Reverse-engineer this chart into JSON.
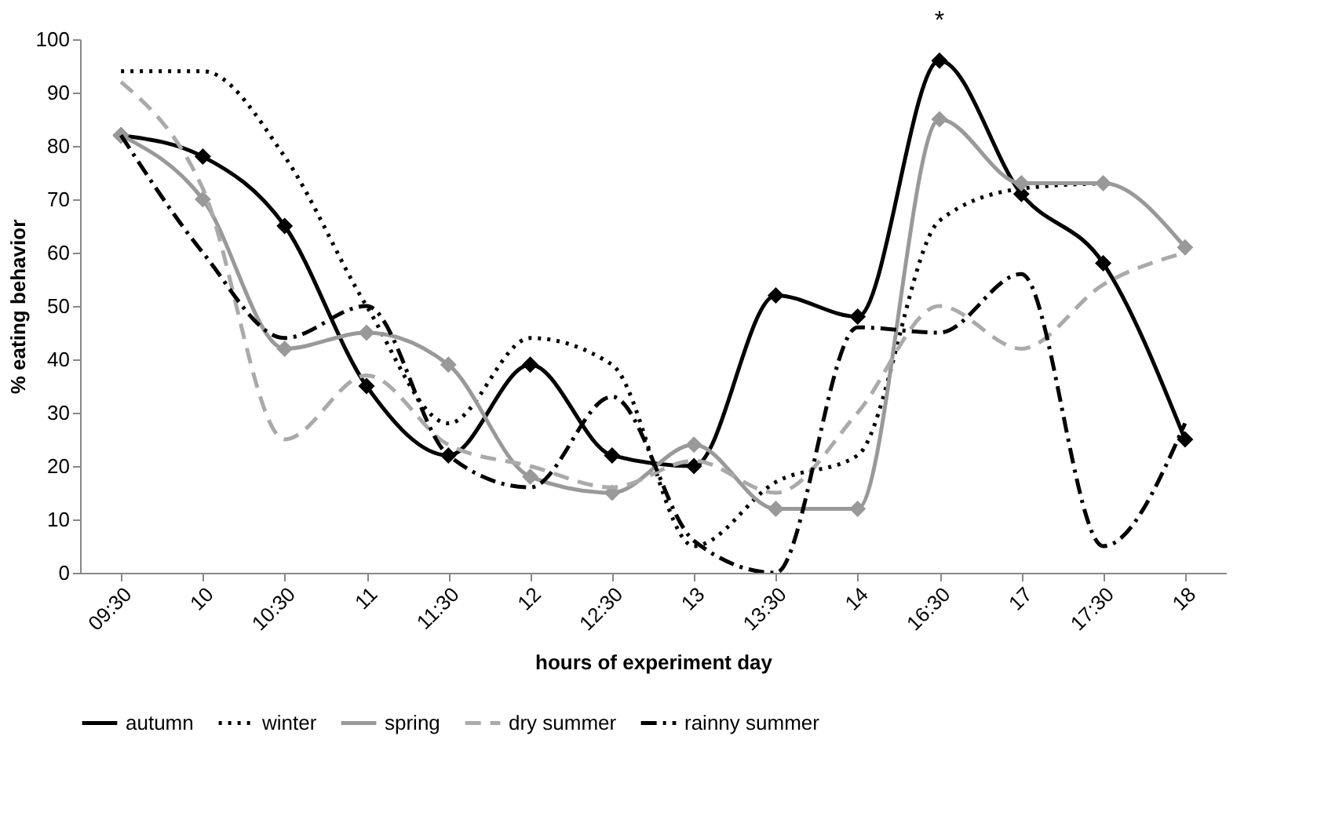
{
  "chart_data": {
    "type": "line",
    "xlabel": "hours of experiment day",
    "ylabel": "% eating behavior",
    "categories": [
      "09:30",
      "10",
      "10:30",
      "11",
      "11:30",
      "12",
      "12:30",
      "13",
      "13:30",
      "14",
      "16:30",
      "17",
      "17:30",
      "18"
    ],
    "series": [
      {
        "name": "autumn",
        "color": "#000000",
        "line_style": "solid",
        "marker": "diamond",
        "values": [
          82,
          78,
          65,
          35,
          22,
          39,
          22,
          20,
          52,
          48,
          96,
          71,
          58,
          25
        ]
      },
      {
        "name": "winter",
        "color": "#000000",
        "line_style": "dotted",
        "marker": "none",
        "values": [
          94,
          94,
          78,
          50,
          28,
          44,
          39,
          5,
          17,
          22,
          66,
          72,
          73,
          null
        ]
      },
      {
        "name": "spring",
        "color": "#999999",
        "line_style": "solid",
        "marker": "diamond",
        "values": [
          82,
          70,
          42,
          45,
          39,
          18,
          15,
          24,
          12,
          12,
          85,
          73,
          73,
          61
        ]
      },
      {
        "name": "dry summer",
        "color": "#aaaaaa",
        "line_style": "dashed",
        "marker": "none",
        "values": [
          92,
          72,
          25,
          37,
          24,
          20,
          16,
          21,
          15,
          30,
          50,
          42,
          54,
          60
        ]
      },
      {
        "name": "rainny summer",
        "color": "#000000",
        "line_style": "dashdot",
        "marker": "none",
        "values": [
          82,
          60,
          44,
          50,
          22,
          16,
          33,
          6,
          0,
          46,
          45,
          56,
          5,
          28
        ]
      }
    ],
    "ylim": [
      0,
      100
    ],
    "yticks": [
      0,
      10,
      20,
      30,
      40,
      50,
      60,
      70,
      80,
      90,
      100
    ],
    "grid": false,
    "legend": "bottom",
    "annotations": [
      "*"
    ]
  }
}
